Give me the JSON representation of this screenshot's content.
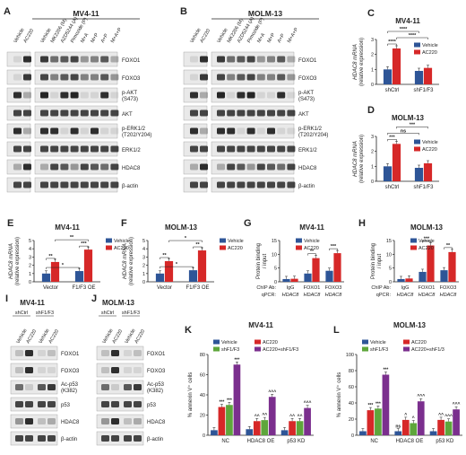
{
  "colors": {
    "vehicle": "#2e5597",
    "ac220": "#d62828",
    "shF1F3": "#5ea63b",
    "combo": "#7b2f8e",
    "band": "#1a1a1a",
    "bg": "#e9e9e9"
  },
  "panelA": {
    "letter": "A",
    "title": "MV4-11",
    "lanes2": [
      "Vehicle",
      "AC220"
    ],
    "lanes8": [
      "Vehicle",
      "MK2206 (M)",
      "AZD5244 (A)",
      "Pimozide (P)",
      "M+A",
      "M+P",
      "A+P",
      "M+A+P"
    ],
    "rows": [
      "FOXO1",
      "FOXO3",
      "p-AKT (S473)",
      "AKT",
      "p-ERK1/2 (T202/Y204)",
      "ERK1/2",
      "HDAC8",
      "β-actin"
    ]
  },
  "panelB": {
    "letter": "B",
    "title": "MOLM-13",
    "lanes2": [
      "Vehicle",
      "AC220"
    ],
    "lanes8": [
      "Vehicle",
      "MK2206 (M)",
      "AZD5244 (A)",
      "Pimozide (P)",
      "M+A",
      "M+P",
      "A+P",
      "M+A+P"
    ],
    "rows": [
      "FOXO1",
      "FOXO3",
      "p-AKT (S473)",
      "AKT",
      "p-ERK1/2 (T202/Y204)",
      "ERK1/2",
      "HDAC8",
      "β-actin"
    ]
  },
  "panelC": {
    "letter": "C",
    "title": "MV4-11",
    "ylabel1": "HDAC8 mRNA",
    "ylabel2": "(relative expression)",
    "yticks": [
      "0",
      "1",
      "2",
      "3"
    ],
    "groups": [
      "shCtrl",
      "shF1/F3"
    ],
    "legend": [
      "Vehicle",
      "AC220"
    ],
    "values": [
      [
        1.0,
        2.4
      ],
      [
        0.9,
        1.1
      ]
    ],
    "sig": [
      "****",
      "****",
      "****"
    ]
  },
  "panelD": {
    "letter": "D",
    "title": "MOLM-13",
    "ylabel1": "HDAC8 mRNA",
    "ylabel2": "(relative expression)",
    "yticks": [
      "0",
      "1",
      "2",
      "3"
    ],
    "groups": [
      "shCtrl",
      "shF1/F3"
    ],
    "legend": [
      "Vehicle",
      "AC220"
    ],
    "values": [
      [
        1.0,
        2.5
      ],
      [
        0.9,
        1.2
      ]
    ],
    "sig": [
      "***",
      "ns",
      "***"
    ]
  },
  "panelE": {
    "letter": "E",
    "title": "MV4-11",
    "ylabel1": "HDAC8 mRNA",
    "ylabel2": "(relative expression)",
    "yticks": [
      "0",
      "1",
      "2",
      "3",
      "4",
      "5"
    ],
    "groups": [
      "Vector",
      "F1/F3 OE"
    ],
    "legend": [
      "Vehicle",
      "AC220"
    ],
    "values": [
      [
        1.0,
        2.4
      ],
      [
        1.3,
        3.9
      ]
    ],
    "sig": [
      "**",
      "*",
      "**",
      "***"
    ]
  },
  "panelF": {
    "letter": "F",
    "title": "MOLM-13",
    "ylabel1": "HDAC8 mRNA",
    "ylabel2": "(relative expression)",
    "yticks": [
      "0",
      "1",
      "2",
      "3",
      "4",
      "5"
    ],
    "groups": [
      "Vector",
      "F1/F3 OE"
    ],
    "legend": [
      "Vehicle",
      "AC220"
    ],
    "values": [
      [
        1.0,
        2.5
      ],
      [
        1.4,
        3.8
      ]
    ],
    "sig": [
      "**",
      "*",
      "*",
      "**"
    ]
  },
  "panelG": {
    "letter": "G",
    "title": "MV4-11",
    "ylabel1": "Protein binding",
    "ylabel2": "/ input",
    "yticks": [
      "0",
      "5",
      "10",
      "15"
    ],
    "legend": [
      "Vehicle",
      "AC220"
    ],
    "chipLabel": "ChIP Ab:",
    "qpcrLabel": "qPCR:",
    "chip": [
      "IgG",
      "FOXO1",
      "FOXO3"
    ],
    "qpcr": [
      "HDAC8",
      "HDAC8",
      "HDAC8"
    ],
    "values": [
      [
        1.0,
        1.1
      ],
      [
        3.0,
        8.6
      ],
      [
        4.0,
        10.4
      ]
    ],
    "sig": [
      "**",
      "***"
    ]
  },
  "panelH": {
    "letter": "H",
    "title": "MOLM-13",
    "ylabel1": "Protein binding",
    "ylabel2": "/ input",
    "yticks": [
      "0",
      "5",
      "10",
      "15"
    ],
    "legend": [
      "Vehicle",
      "AC220"
    ],
    "chipLabel": "ChIP Ab:",
    "qpcrLabel": "qPCR:",
    "chip": [
      "IgG",
      "FOXO1",
      "FOXO3"
    ],
    "qpcr": [
      "HDAC8",
      "HDAC8",
      "HDAC8"
    ],
    "values": [
      [
        1.0,
        1.2
      ],
      [
        3.6,
        13.2
      ],
      [
        4.2,
        10.8
      ]
    ],
    "sig": [
      "***",
      "**"
    ]
  },
  "panelI": {
    "letter": "I",
    "title": "MV4-11",
    "groupLabels": [
      "shCtrl",
      "shF1/F3"
    ],
    "lanes": [
      "Vehicle",
      "AC220",
      "Vehicle",
      "AC220"
    ],
    "rows": [
      "FOXO1",
      "FOXO3",
      "Ac-p53 (K382)",
      "p53",
      "HDAC8",
      "β-actin"
    ]
  },
  "panelJ": {
    "letter": "J",
    "title": "MOLM-13",
    "groupLabels": [
      "shCtrl",
      "shF1/F3"
    ],
    "lanes": [
      "Vehicle",
      "AC220",
      "Vehicle",
      "AC220"
    ],
    "rows": [
      "FOXO1",
      "FOXO3",
      "Ac-p53 (K382)",
      "p53",
      "HDAC8",
      "β-actin"
    ]
  },
  "panelK": {
    "letter": "K",
    "title": "MV4-11",
    "ylabel": "% annexin V⁺ cells",
    "yticks": [
      "0",
      "20",
      "40",
      "60",
      "80"
    ],
    "groups": [
      "NC",
      "HDAC8 OE",
      "p53 KD"
    ],
    "legend": [
      "Vehicle",
      "AC220",
      "shF1/F3",
      "AC220+shF1/F3"
    ],
    "values": [
      [
        5,
        28,
        30,
        70
      ],
      [
        6,
        14,
        15,
        38
      ],
      [
        5,
        14,
        14,
        27
      ]
    ],
    "sig": [
      [
        "",
        "***",
        "***",
        "***"
      ],
      [
        "",
        "^^",
        "^^",
        "^^^"
      ],
      [
        "",
        "^^",
        "^^",
        "^^^"
      ]
    ]
  },
  "panelL": {
    "letter": "L",
    "title": "MOLM-13",
    "ylabel": "% annexin V⁺ cells",
    "yticks": [
      "0",
      "20",
      "40",
      "60",
      "80",
      "100"
    ],
    "groups": [
      "NC",
      "HDAC8 OE",
      "p53 KD"
    ],
    "legend": [
      "Vehicle",
      "AC220",
      "shF1/F3",
      "AC220+shF1/3"
    ],
    "values": [
      [
        5,
        31,
        33,
        75
      ],
      [
        5,
        19,
        15,
        42
      ],
      [
        5,
        19,
        17,
        32
      ]
    ],
    "sig": [
      [
        "",
        "***",
        "***",
        "***"
      ],
      [
        "ns",
        "^",
        "^",
        "^^^"
      ],
      [
        "",
        "^^",
        "^^^",
        "^^^"
      ]
    ]
  }
}
